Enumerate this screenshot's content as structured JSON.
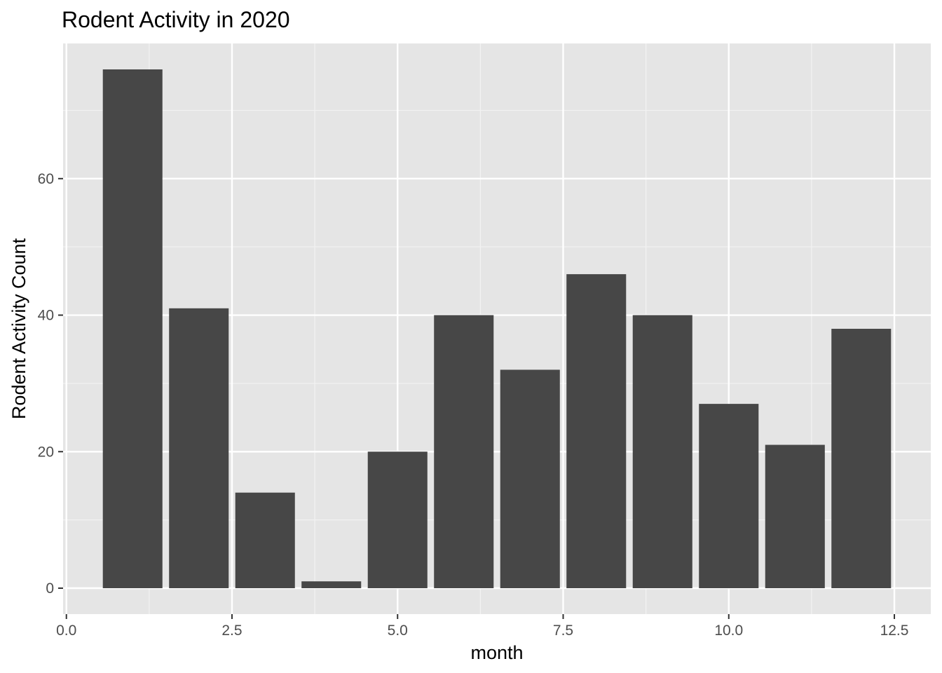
{
  "chart_data": {
    "type": "bar",
    "title": "Rodent Activity in 2020",
    "xlabel": "month",
    "ylabel": "Rodent Activity Count",
    "x": [
      1,
      2,
      3,
      4,
      5,
      6,
      7,
      8,
      9,
      10,
      11,
      12
    ],
    "values": [
      76,
      41,
      14,
      1,
      20,
      40,
      32,
      46,
      40,
      27,
      21,
      38
    ],
    "bar_width": 0.9,
    "xlim": [
      -0.05,
      13.05
    ],
    "ylim": [
      -3.8,
      79.8
    ],
    "x_ticks": [
      0,
      2.5,
      5,
      7.5,
      10,
      12.5
    ],
    "x_tick_labels": [
      "0.0",
      "2.5",
      "5.0",
      "7.5",
      "10.0",
      "12.5"
    ],
    "x_minor_ticks": [
      1.25,
      3.75,
      6.25,
      8.75,
      11.25
    ],
    "y_ticks": [
      0,
      20,
      40,
      60
    ],
    "y_tick_labels": [
      "0",
      "20",
      "40",
      "60"
    ],
    "y_minor_ticks": [
      10,
      30,
      50,
      70
    ],
    "grid": true,
    "colors": {
      "bar": "#474747",
      "panel": "#e5e5e5",
      "grid_major": "#ffffff",
      "grid_minor": "#f2f2f2",
      "tick": "#333333"
    }
  }
}
